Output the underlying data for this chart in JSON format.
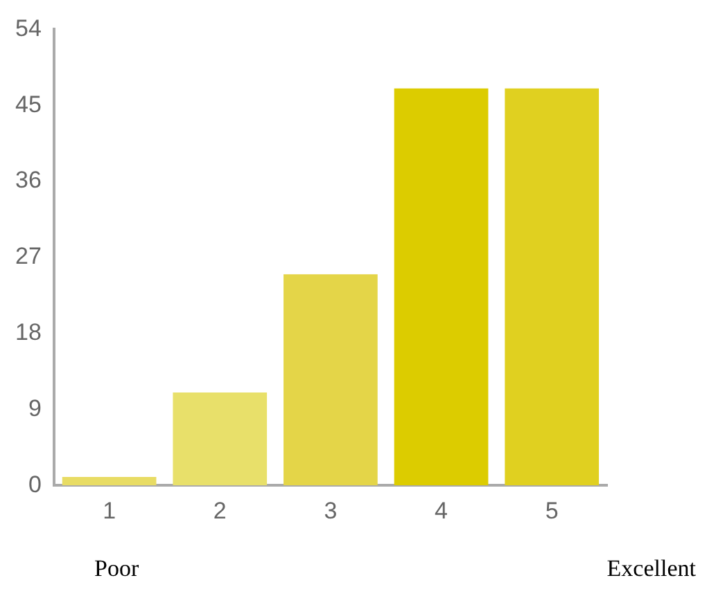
{
  "chart_data": {
    "type": "bar",
    "categories": [
      "1",
      "2",
      "3",
      "4",
      "5"
    ],
    "values": [
      1,
      11,
      25,
      47,
      47
    ],
    "colors": [
      "#e8dc64",
      "#e8e06a",
      "#e4d548",
      "#dccc00",
      "#e0d020"
    ],
    "ylim": [
      0,
      54
    ],
    "yticks": [
      0,
      9,
      18,
      27,
      36,
      45,
      54
    ],
    "grid": false,
    "legend": false,
    "annotations": [
      "Poor",
      "Excellent"
    ]
  }
}
